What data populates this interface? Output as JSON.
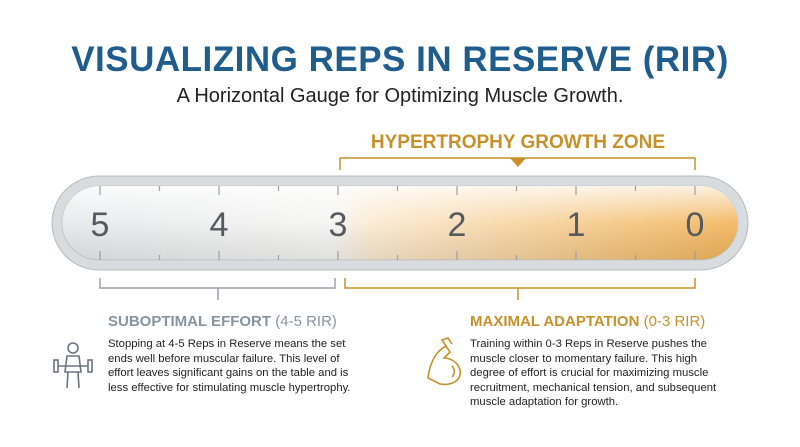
{
  "title": "VISUALIZING REPS IN RESERVE (RIR)",
  "subtitle": "A Horizontal Gauge for Optimizing Muscle Growth.",
  "zone_label": "HYPERTROPHY GROWTH ZONE",
  "gauge": {
    "labels": [
      "5",
      "4",
      "3",
      "2",
      "1",
      "0"
    ]
  },
  "left_panel": {
    "heading": "SUBOPTIMAL EFFORT",
    "range": "(4-5 RIR)",
    "text": "Stopping at 4-5 Reps in Reserve means the set ends well before muscular failure. This level of effort leaves significant gains on the table and is less effective for stimulating muscle hypertrophy."
  },
  "right_panel": {
    "heading": "MAXIMAL ADAPTATION",
    "range": "(0-3 RIR)",
    "text": "Training within 0-3 Reps in Reserve pushes the muscle closer to momentary failure. This high degree of effort is crucial for maximizing muscle recruitment, mechanical tension, and subsequent muscle adaptation for growth."
  }
}
